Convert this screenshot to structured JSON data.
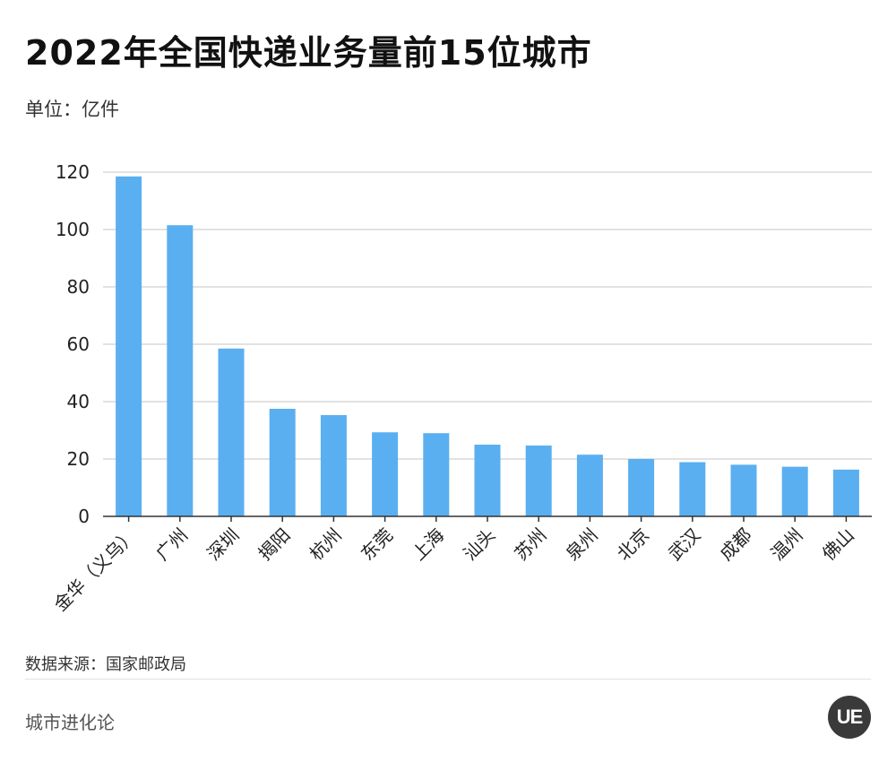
{
  "header": {
    "title": "2022年全国快递业务量前15位城市",
    "unit": "单位：亿件"
  },
  "footer": {
    "source": "数据来源：国家邮政局",
    "brand": "城市进化论",
    "logo_text": "UE"
  },
  "colors": {
    "bar": "#5aaff0",
    "grid": "#d9d9d9",
    "axis": "#333333"
  },
  "chart_data": {
    "type": "bar",
    "categories": [
      "金华（义乌）",
      "广州",
      "深圳",
      "揭阳",
      "杭州",
      "东莞",
      "上海",
      "汕头",
      "苏州",
      "泉州",
      "北京",
      "武汉",
      "成都",
      "温州",
      "佛山"
    ],
    "values": [
      118.5,
      101.5,
      58.5,
      37.5,
      35.3,
      29.3,
      29.0,
      25.0,
      24.7,
      21.5,
      20.0,
      18.9,
      18.0,
      17.3,
      16.3
    ],
    "ylim": [
      0,
      120
    ],
    "yticks": [
      0,
      20,
      40,
      60,
      80,
      100,
      120
    ],
    "grid": true,
    "xlabel": "",
    "ylabel": ""
  }
}
